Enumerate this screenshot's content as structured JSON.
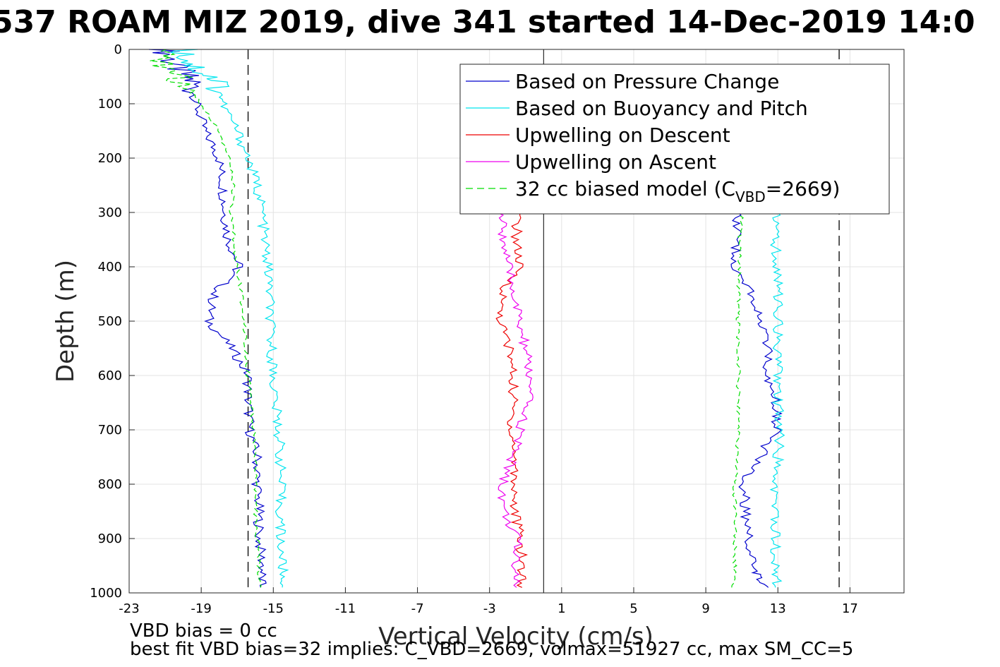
{
  "chart_data": {
    "type": "line",
    "title": "537 ROAM MIZ 2019, dive 341 started 14-Dec-2019 14:0",
    "xlabel": "Vertical Velocity (cm/s)",
    "ylabel": "Depth (m)",
    "xlim": [
      -23,
      20
    ],
    "ylim": [
      0,
      1000
    ],
    "y_reversed": true,
    "grid": true,
    "xticks": [
      -23,
      -19,
      -15,
      -11,
      -7,
      -3,
      1,
      5,
      9,
      13,
      17
    ],
    "yticks": [
      0,
      100,
      200,
      300,
      400,
      500,
      600,
      700,
      800,
      900,
      1000
    ],
    "legend_location": "top-right",
    "legend": [
      {
        "label": "Based on Pressure Change",
        "color": "#0000cc",
        "style": "solid"
      },
      {
        "label": "Based on Buoyancy and Pitch",
        "color": "#00e5ee",
        "style": "solid"
      },
      {
        "label": "Upwelling on Descent",
        "color": "#ee0000",
        "style": "solid"
      },
      {
        "label": "Upwelling on Ascent",
        "color": "#ee00ee",
        "style": "solid"
      },
      {
        "label_main": "32 cc biased model (C",
        "label_sub": "VBD",
        "label_end": "=2669)",
        "color": "#00dd00",
        "style": "dashed"
      }
    ],
    "reference_lines": {
      "zero_line_x": 0,
      "dashed_vertical_x": [
        -16.4,
        16.4
      ]
    },
    "series": [
      {
        "name": "Based on Pressure Change",
        "segments": [
          {
            "depth": [
              0,
              30,
              60,
              100,
              150,
              200,
              250,
              300,
              350,
              400,
              450,
              500,
              550,
              600,
              650,
              700,
              750,
              800,
              850,
              900,
              950,
              990
            ],
            "velocity": [
              -21,
              -20.5,
              -19.5,
              -19.3,
              -18.8,
              -18,
              -17.8,
              -17.7,
              -17.5,
              -16.9,
              -18.3,
              -18.6,
              -17.3,
              -16.4,
              -16.4,
              -16.3,
              -15.9,
              -15.9,
              -15.8,
              -15.8,
              -15.6,
              -15.7
            ]
          },
          {
            "depth": [
              990,
              960,
              900,
              850,
              800,
              750,
              700,
              650,
              600,
              550,
              500,
              450,
              400,
              350,
              300
            ],
            "velocity": [
              12.4,
              11.6,
              11.4,
              11.2,
              11.1,
              12,
              12.9,
              12.9,
              12.4,
              12.4,
              12,
              11.5,
              10.7,
              10.6,
              10.8
            ]
          }
        ]
      },
      {
        "name": "Based on Buoyancy and Pitch",
        "segments": [
          {
            "depth": [
              0,
              30,
              60,
              100,
              150,
              200,
              250,
              300,
              350,
              400,
              450,
              500,
              550,
              600,
              650,
              700,
              750,
              800,
              850,
              900,
              950,
              990
            ],
            "velocity": [
              -20,
              -19.5,
              -18,
              -17.8,
              -17,
              -16.4,
              -15.9,
              -15.6,
              -15.5,
              -15.3,
              -15.2,
              -15.2,
              -15.1,
              -15,
              -14.9,
              -14.7,
              -14.6,
              -14.6,
              -14.6,
              -14.6,
              -14.5,
              -14.5
            ]
          },
          {
            "depth": [
              990,
              950,
              900,
              850,
              800,
              750,
              700,
              650,
              600,
              550,
              500,
              450,
              400,
              350,
              300
            ],
            "velocity": [
              12.9,
              12.9,
              12.9,
              12.9,
              12.9,
              13,
              13.1,
              13,
              13,
              13,
              13,
              13,
              12.9,
              12.9,
              13
            ]
          }
        ]
      },
      {
        "name": "Upwelling on Descent",
        "segments": [
          {
            "depth": [
              300,
              350,
              400,
              450,
              500,
              550,
              600,
              650,
              700,
              750,
              800,
              850,
              900,
              950,
              990
            ],
            "velocity": [
              -1.5,
              -1.5,
              -1.4,
              -2.3,
              -2.4,
              -1.9,
              -1.7,
              -1.7,
              -1.8,
              -1.6,
              -1.6,
              -1.6,
              -1.3,
              -1.2,
              -1.2
            ]
          }
        ]
      },
      {
        "name": "Upwelling on Ascent",
        "segments": [
          {
            "depth": [
              300,
              350,
              400,
              450,
              500,
              550,
              600,
              650,
              700,
              750,
              800,
              850,
              900,
              950,
              990
            ],
            "velocity": [
              -2.4,
              -2.2,
              -2,
              -1.6,
              -1.4,
              -1,
              -0.8,
              -0.9,
              -1.3,
              -1.7,
              -2.3,
              -2.2,
              -1.5,
              -1.5,
              -1.5
            ]
          }
        ]
      },
      {
        "name": "32 cc biased model (CVBD=2669)",
        "dashed": true,
        "segments": [
          {
            "depth": [
              0,
              30,
              60,
              100,
              150,
              200,
              250,
              300,
              350,
              400,
              450,
              500,
              550,
              600,
              650,
              700,
              750,
              800,
              850,
              900,
              950,
              990
            ],
            "velocity": [
              -21.5,
              -21,
              -20,
              -19,
              -18,
              -17.5,
              -17.2,
              -17.4,
              -17.2,
              -17,
              -16.8,
              -16.6,
              -16.5,
              -16.4,
              -16.3,
              -16.1,
              -16,
              -16,
              -16,
              -15.9,
              -15.8,
              -15.7
            ]
          },
          {
            "depth": [
              990,
              950,
              900,
              850,
              800,
              750,
              700,
              650,
              600,
              550,
              500,
              450,
              400,
              350,
              300
            ],
            "velocity": [
              10.5,
              10.6,
              10.6,
              10.6,
              10.6,
              10.7,
              10.8,
              10.8,
              10.8,
              10.8,
              10.8,
              10.8,
              10.9,
              10.9,
              11
            ]
          }
        ]
      }
    ],
    "footer": {
      "line1": "VBD bias = 0 cc",
      "line2": "best fit VBD bias=32 implies: C_VBD=2669, volmax=51927 cc, max SM_CC=5"
    }
  }
}
